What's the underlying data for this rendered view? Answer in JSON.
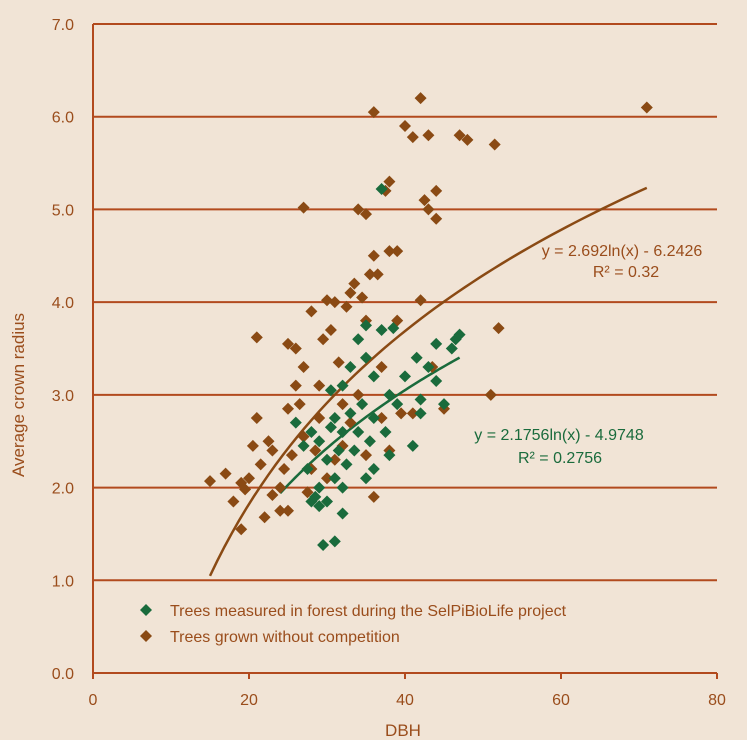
{
  "colors": {
    "background": "#f1e4d6",
    "axis_text": "#9a4d1c",
    "grid": "#b24a1e",
    "forest": "#1a6b3c",
    "no_competition": "#8a4a14"
  },
  "chart_data": {
    "type": "scatter",
    "title": "",
    "xlabel": "DBH",
    "ylabel": "Average crown radius",
    "xlim": [
      0,
      80
    ],
    "ylim": [
      0,
      7
    ],
    "x_ticks": [
      "0",
      "20",
      "40",
      "60",
      "80"
    ],
    "y_ticks": [
      "0.0",
      "1.0",
      "2.0",
      "3.0",
      "4.0",
      "5.0",
      "6.0",
      "7.0"
    ],
    "grid": "horizontal",
    "legend_position": "bottom-left",
    "series": [
      {
        "name": "Trees measured in forest during the SelPiBioLife project",
        "marker": "diamond",
        "color": "#1a6b3c",
        "trendline": {
          "equation": "y = 2.1756ln(x) - 4.9748",
          "r2": "R² = 0.2756",
          "a": 2.1756,
          "b": -4.9748,
          "x_range": [
            24,
            47
          ]
        },
        "points": [
          [
            26,
            2.7
          ],
          [
            27,
            2.45
          ],
          [
            27.5,
            2.2
          ],
          [
            28,
            2.6
          ],
          [
            28,
            1.85
          ],
          [
            28.5,
            1.9
          ],
          [
            29,
            1.8
          ],
          [
            29,
            2.0
          ],
          [
            29,
            2.5
          ],
          [
            29.5,
            1.38
          ],
          [
            30,
            1.85
          ],
          [
            30,
            2.3
          ],
          [
            30.5,
            2.65
          ],
          [
            30.5,
            3.05
          ],
          [
            31,
            1.42
          ],
          [
            31,
            2.1
          ],
          [
            31,
            2.75
          ],
          [
            31.5,
            2.4
          ],
          [
            32,
            2.0
          ],
          [
            32,
            1.72
          ],
          [
            32,
            2.6
          ],
          [
            32,
            3.1
          ],
          [
            32.5,
            2.25
          ],
          [
            33,
            2.8
          ],
          [
            33,
            3.3
          ],
          [
            33.5,
            2.4
          ],
          [
            34,
            2.6
          ],
          [
            34,
            3.6
          ],
          [
            34.5,
            2.9
          ],
          [
            35,
            2.1
          ],
          [
            35,
            3.4
          ],
          [
            35,
            3.75
          ],
          [
            35.5,
            2.5
          ],
          [
            36,
            2.2
          ],
          [
            36,
            3.2
          ],
          [
            36,
            2.75
          ],
          [
            37,
            3.7
          ],
          [
            37,
            5.22
          ],
          [
            37.5,
            2.6
          ],
          [
            38,
            3.0
          ],
          [
            38,
            2.35
          ],
          [
            38.5,
            3.72
          ],
          [
            39,
            2.9
          ],
          [
            40,
            3.2
          ],
          [
            41,
            2.45
          ],
          [
            41.5,
            3.4
          ],
          [
            42,
            2.8
          ],
          [
            42,
            2.95
          ],
          [
            43,
            3.3
          ],
          [
            44,
            3.55
          ],
          [
            44,
            3.15
          ],
          [
            45,
            2.9
          ],
          [
            46,
            3.5
          ],
          [
            46.5,
            3.6
          ],
          [
            47,
            3.65
          ]
        ]
      },
      {
        "name": "Trees grown without competition",
        "marker": "diamond",
        "color": "#8a4a14",
        "trendline": {
          "equation": "y = 2.692ln(x) - 6.2426",
          "r2": "R² = 0.32",
          "a": 2.692,
          "b": -6.2426,
          "x_range": [
            15,
            71
          ]
        },
        "points": [
          [
            15,
            2.07
          ],
          [
            17,
            2.15
          ],
          [
            18,
            1.85
          ],
          [
            19,
            2.05
          ],
          [
            19,
            1.55
          ],
          [
            19.5,
            1.98
          ],
          [
            20,
            2.1
          ],
          [
            20.5,
            2.45
          ],
          [
            21,
            3.62
          ],
          [
            21,
            2.75
          ],
          [
            21.5,
            2.25
          ],
          [
            22,
            1.68
          ],
          [
            22.5,
            2.5
          ],
          [
            23,
            1.92
          ],
          [
            23,
            2.4
          ],
          [
            24,
            1.75
          ],
          [
            24,
            2.0
          ],
          [
            24.5,
            2.2
          ],
          [
            25,
            3.55
          ],
          [
            25,
            2.85
          ],
          [
            25,
            1.75
          ],
          [
            25.5,
            2.35
          ],
          [
            26,
            3.5
          ],
          [
            26,
            3.1
          ],
          [
            26.5,
            2.9
          ],
          [
            27,
            5.02
          ],
          [
            27,
            3.3
          ],
          [
            27,
            2.55
          ],
          [
            27.5,
            1.95
          ],
          [
            28,
            2.2
          ],
          [
            28,
            3.9
          ],
          [
            28.5,
            2.4
          ],
          [
            29,
            2.75
          ],
          [
            29,
            3.1
          ],
          [
            29.5,
            3.6
          ],
          [
            30,
            4.02
          ],
          [
            30,
            2.1
          ],
          [
            30.5,
            3.7
          ],
          [
            31,
            2.3
          ],
          [
            31,
            4.0
          ],
          [
            31.5,
            3.35
          ],
          [
            32,
            2.9
          ],
          [
            32,
            2.45
          ],
          [
            32.5,
            3.95
          ],
          [
            33,
            4.1
          ],
          [
            33,
            2.7
          ],
          [
            33.5,
            4.2
          ],
          [
            34,
            3.0
          ],
          [
            34,
            5.0
          ],
          [
            34.5,
            4.05
          ],
          [
            35,
            2.35
          ],
          [
            35,
            3.8
          ],
          [
            35,
            4.95
          ],
          [
            35.5,
            4.3
          ],
          [
            36,
            1.9
          ],
          [
            36,
            6.05
          ],
          [
            36,
            4.5
          ],
          [
            36.5,
            4.3
          ],
          [
            37,
            2.75
          ],
          [
            37,
            3.3
          ],
          [
            37.5,
            5.2
          ],
          [
            38,
            5.3
          ],
          [
            38,
            4.55
          ],
          [
            38,
            2.4
          ],
          [
            39,
            4.55
          ],
          [
            39,
            3.8
          ],
          [
            39.5,
            2.8
          ],
          [
            40,
            5.9
          ],
          [
            41,
            5.78
          ],
          [
            41,
            2.8
          ],
          [
            42,
            6.2
          ],
          [
            42,
            4.02
          ],
          [
            42.5,
            5.1
          ],
          [
            43,
            5.0
          ],
          [
            43,
            5.8
          ],
          [
            43.5,
            3.3
          ],
          [
            44,
            5.2
          ],
          [
            44,
            4.9
          ],
          [
            45,
            2.85
          ],
          [
            47,
            5.8
          ],
          [
            48,
            5.75
          ],
          [
            51,
            3.0
          ],
          [
            51.5,
            5.7
          ],
          [
            52,
            3.72
          ],
          [
            71,
            6.1
          ]
        ]
      }
    ]
  }
}
